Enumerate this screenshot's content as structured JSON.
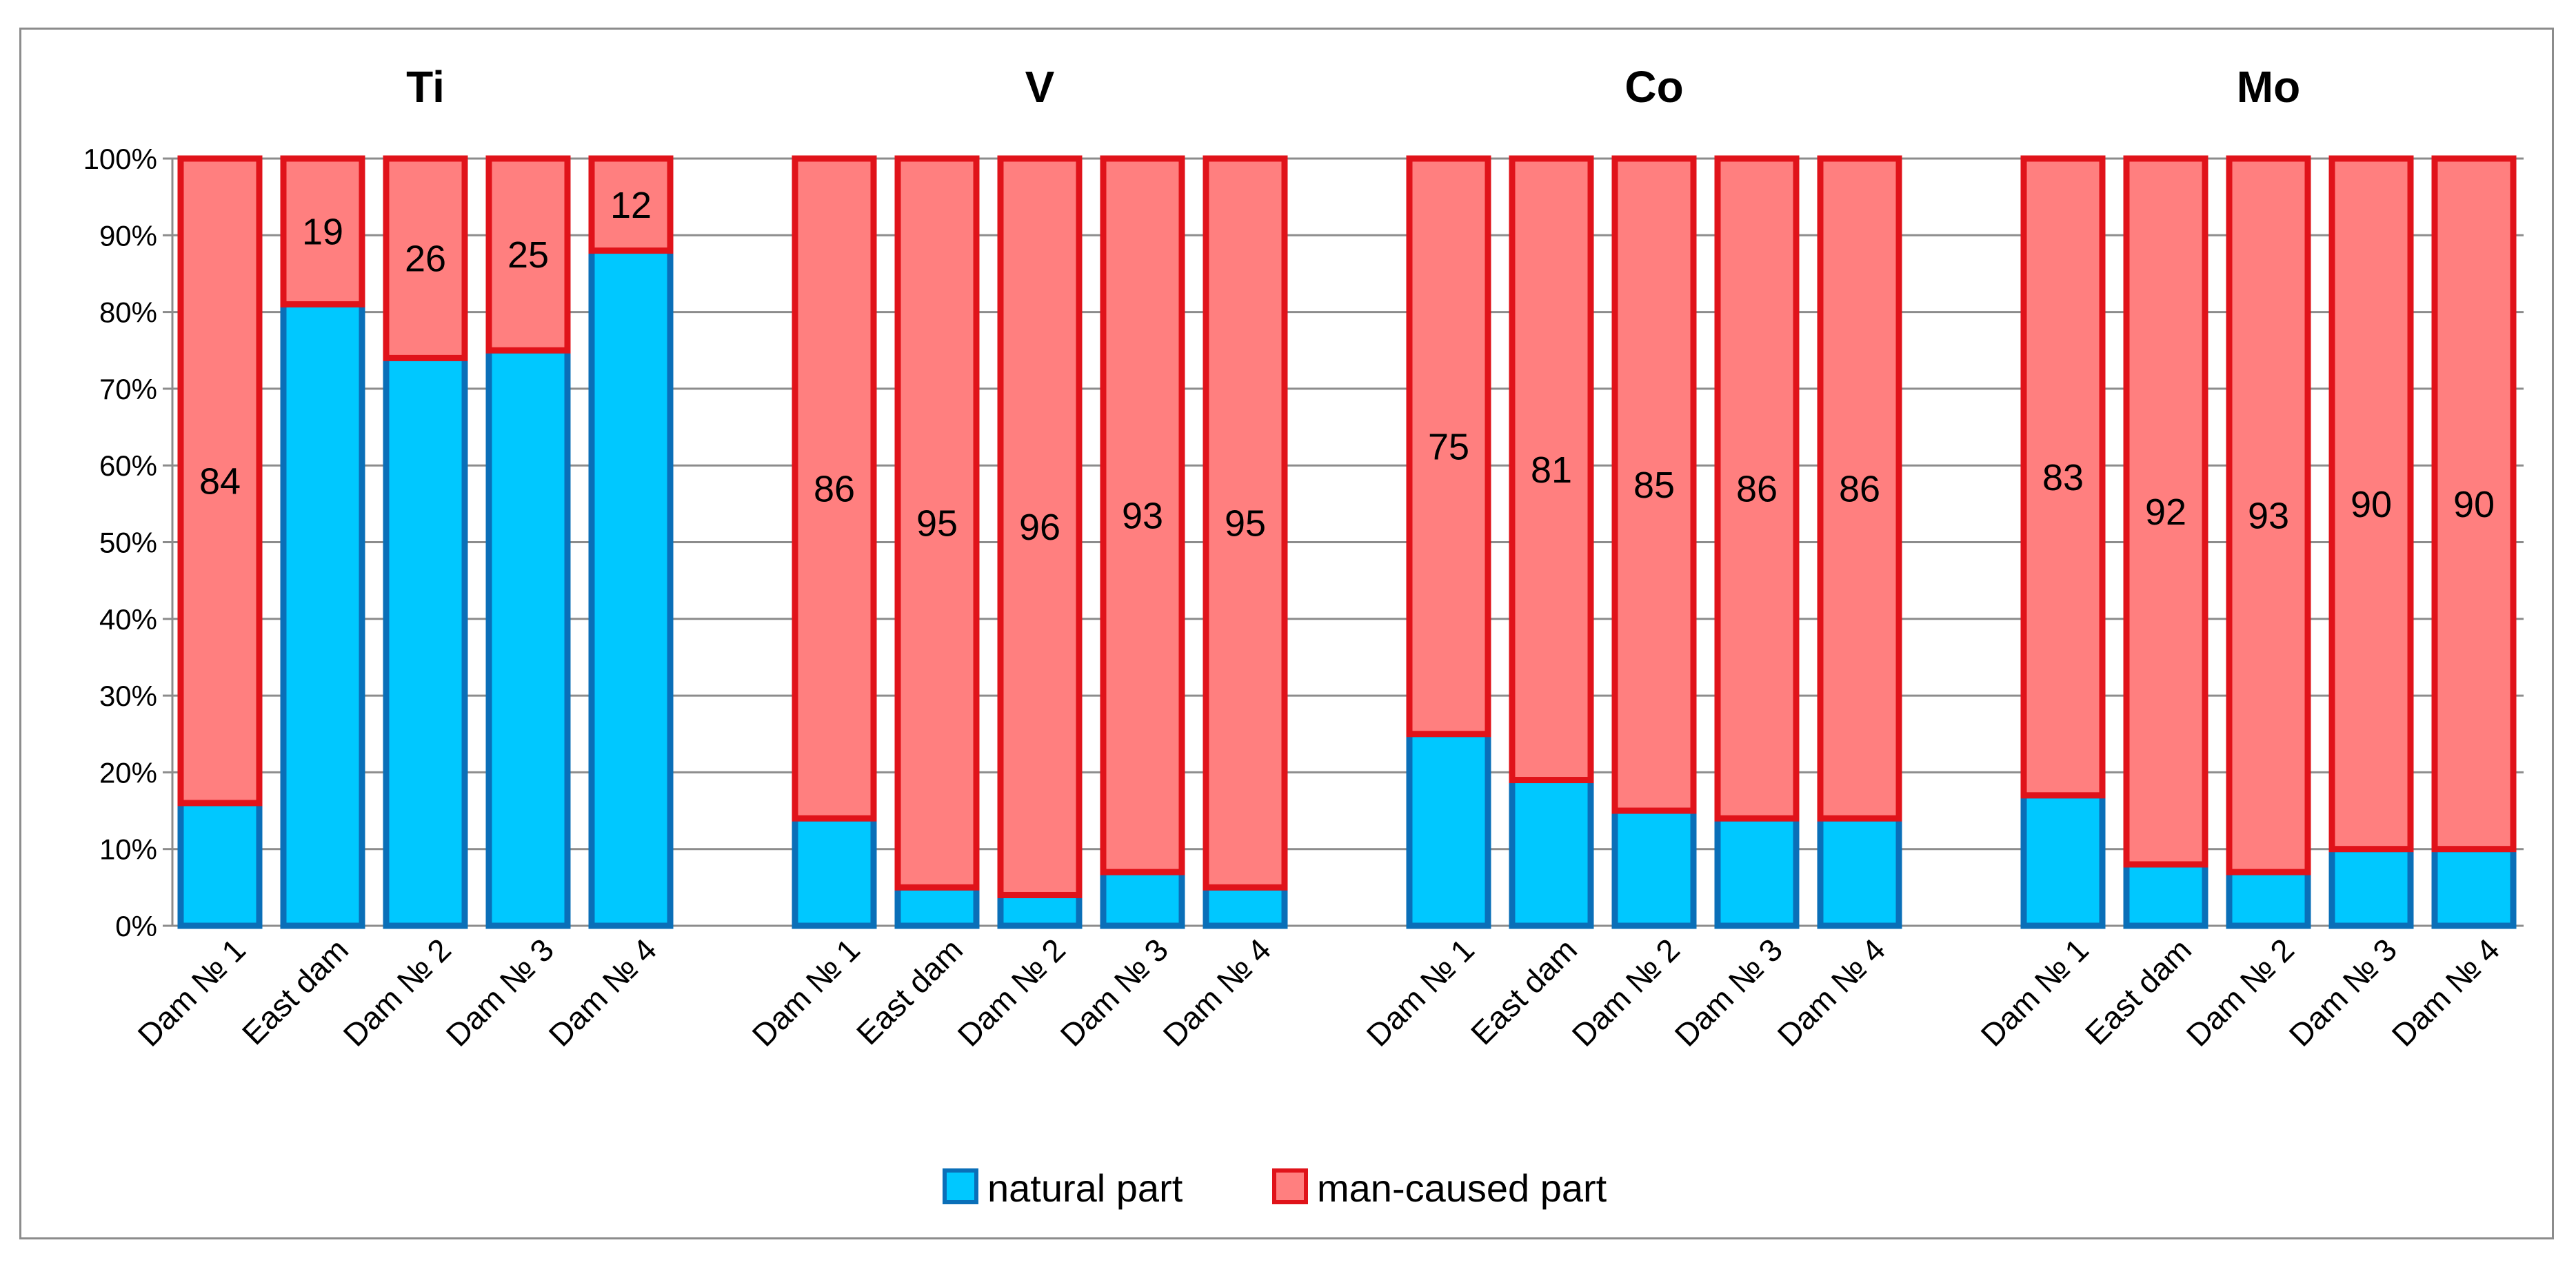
{
  "chart_data": {
    "type": "bar",
    "stacked": true,
    "title": "",
    "xlabel": "",
    "ylabel": "",
    "ylim": [
      0,
      100
    ],
    "y_ticks": [
      "0%",
      "10%",
      "20%",
      "30%",
      "40%",
      "50%",
      "60%",
      "70%",
      "80%",
      "90%",
      "100%"
    ],
    "grid": true,
    "legend_position": "bottom",
    "categories": [
      "Dam № 1",
      "East dam",
      "Dam № 2",
      "Dam № 3",
      "Dam № 4"
    ],
    "series": [
      {
        "name": "natural part",
        "color": "#00C8FF",
        "border_color": "#0A6FB8"
      },
      {
        "name": "man-caused part",
        "color": "#FF7F7F",
        "border_color": "#E0131A"
      }
    ],
    "panels": [
      {
        "title": "Ti",
        "natural": [
          16,
          81,
          74,
          75,
          88
        ],
        "man_caused": [
          84,
          19,
          26,
          25,
          12
        ],
        "labels": [
          "84",
          "19",
          "26",
          "25",
          "12"
        ]
      },
      {
        "title": "V",
        "natural": [
          14,
          5,
          4,
          7,
          5
        ],
        "man_caused": [
          86,
          95,
          96,
          93,
          95
        ],
        "labels": [
          "86",
          "95",
          "96",
          "93",
          "95"
        ]
      },
      {
        "title": "Co",
        "natural": [
          25,
          19,
          15,
          14,
          14
        ],
        "man_caused": [
          75,
          81,
          85,
          86,
          86
        ],
        "labels": [
          "75",
          "81",
          "85",
          "86",
          "86"
        ]
      },
      {
        "title": "Mo",
        "natural": [
          17,
          8,
          7,
          10,
          10
        ],
        "man_caused": [
          83,
          92,
          93,
          90,
          90
        ],
        "labels": [
          "83",
          "92",
          "93",
          "90",
          "90"
        ]
      }
    ]
  }
}
